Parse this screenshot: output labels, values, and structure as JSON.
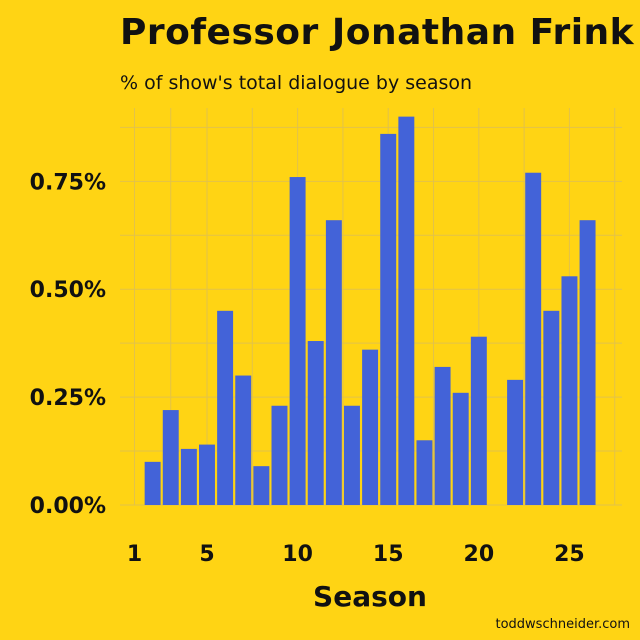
{
  "chart_data": {
    "type": "bar",
    "title": "Professor Jonathan Frink",
    "subtitle": "% of show's total dialogue by season",
    "xlabel": "Season",
    "ylabel": "",
    "x": [
      1,
      2,
      3,
      4,
      5,
      6,
      7,
      8,
      9,
      10,
      11,
      12,
      13,
      14,
      15,
      16,
      17,
      18,
      19,
      20,
      21,
      22,
      23,
      24,
      25,
      26
    ],
    "values": [
      0.0,
      0.1,
      0.22,
      0.13,
      0.14,
      0.45,
      0.3,
      0.09,
      0.23,
      0.76,
      0.38,
      0.66,
      0.23,
      0.36,
      0.86,
      0.9,
      0.15,
      0.32,
      0.26,
      0.39,
      0.0,
      0.29,
      0.77,
      0.45,
      0.53,
      0.66
    ],
    "xticks": [
      1,
      5,
      10,
      15,
      20,
      25
    ],
    "xtick_labels": [
      "1",
      "5",
      "10",
      "15",
      "20",
      "25"
    ],
    "yticks": [
      0,
      0.25,
      0.5,
      0.75
    ],
    "ytick_labels": [
      "0.00%",
      "0.25%",
      "0.50%",
      "0.75%"
    ],
    "xlim": [
      0.2,
      27.9
    ],
    "ylim": [
      0,
      0.92
    ],
    "grid": true,
    "colors": {
      "background": "#FFD414",
      "bar": "#4363D8",
      "grid": "#E2C24A",
      "text": "#111111"
    }
  },
  "credit": "toddwschneider.com"
}
